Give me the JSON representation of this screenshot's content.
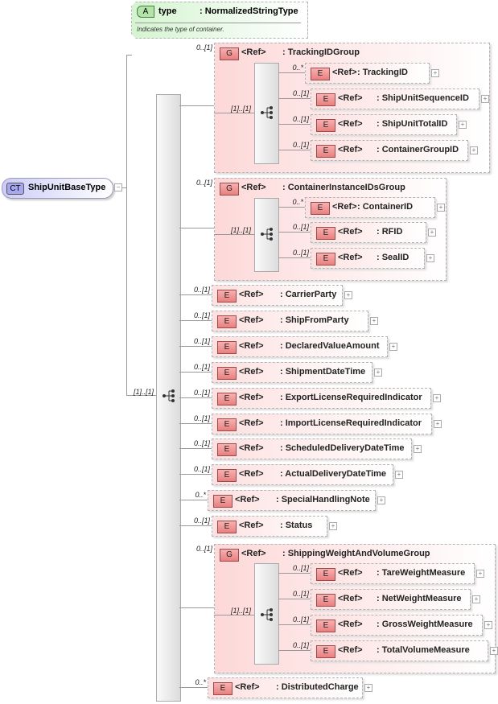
{
  "complex_type": {
    "badge": "CT",
    "name": "ShipUnitBaseType",
    "collapse": "−"
  },
  "attribute": {
    "badge": "A",
    "name": "type",
    "type": ": NormalizedStringType",
    "description": "Indicates the type of container."
  },
  "sequence_multiplicity": "[1]..[1]",
  "expand_symbol": "+",
  "children": [
    {
      "kind": "group",
      "badge": "G",
      "ref": "<Ref>",
      "name": ": TrackingIDGroup",
      "multiplicity": "0..[1]",
      "sequence_multiplicity": "[1]..[1]",
      "children": [
        {
          "badge": "E",
          "ref": "<Ref>",
          "name": ": TrackingID",
          "multiplicity": "0..*"
        },
        {
          "badge": "E",
          "ref": "<Ref>",
          "name": ": ShipUnitSequenceID",
          "multiplicity": "0..[1]"
        },
        {
          "badge": "E",
          "ref": "<Ref>",
          "name": ": ShipUnitTotalID",
          "multiplicity": "0..[1]"
        },
        {
          "badge": "E",
          "ref": "<Ref>",
          "name": ": ContainerGroupID",
          "multiplicity": "0..[1]"
        }
      ]
    },
    {
      "kind": "group",
      "badge": "G",
      "ref": "<Ref>",
      "name": ": ContainerInstanceIDsGroup",
      "multiplicity": "0..[1]",
      "sequence_multiplicity": "[1]..[1]",
      "children": [
        {
          "badge": "E",
          "ref": "<Ref>",
          "name": ": ContainerID",
          "multiplicity": "0..*"
        },
        {
          "badge": "E",
          "ref": "<Ref>",
          "name": ": RFID",
          "multiplicity": "0..[1]"
        },
        {
          "badge": "E",
          "ref": "<Ref>",
          "name": ": SealID",
          "multiplicity": "0..[1]"
        }
      ]
    },
    {
      "kind": "element",
      "badge": "E",
      "ref": "<Ref>",
      "name": ": CarrierParty",
      "multiplicity": "0..[1]"
    },
    {
      "kind": "element",
      "badge": "E",
      "ref": "<Ref>",
      "name": ": ShipFromParty",
      "multiplicity": "0..[1]"
    },
    {
      "kind": "element",
      "badge": "E",
      "ref": "<Ref>",
      "name": ": DeclaredValueAmount",
      "multiplicity": "0..[1]"
    },
    {
      "kind": "element",
      "badge": "E",
      "ref": "<Ref>",
      "name": ": ShipmentDateTime",
      "multiplicity": "0..[1]"
    },
    {
      "kind": "element",
      "badge": "E",
      "ref": "<Ref>",
      "name": ": ExportLicenseRequiredIndicator",
      "multiplicity": "0..[1]"
    },
    {
      "kind": "element",
      "badge": "E",
      "ref": "<Ref>",
      "name": ": ImportLicenseRequiredIndicator",
      "multiplicity": "0..[1]"
    },
    {
      "kind": "element",
      "badge": "E",
      "ref": "<Ref>",
      "name": ": ScheduledDeliveryDateTime",
      "multiplicity": "0..[1]"
    },
    {
      "kind": "element",
      "badge": "E",
      "ref": "<Ref>",
      "name": ": ActualDeliveryDateTime",
      "multiplicity": "0..[1]"
    },
    {
      "kind": "element",
      "badge": "E",
      "ref": "<Ref>",
      "name": ": SpecialHandlingNote",
      "multiplicity": "0..*"
    },
    {
      "kind": "element",
      "badge": "E",
      "ref": "<Ref>",
      "name": ": Status",
      "multiplicity": "0..[1]"
    },
    {
      "kind": "group",
      "badge": "G",
      "ref": "<Ref>",
      "name": ": ShippingWeightAndVolumeGroup",
      "multiplicity": "0..[1]",
      "sequence_multiplicity": "[1]..[1]",
      "children": [
        {
          "badge": "E",
          "ref": "<Ref>",
          "name": ": TareWeightMeasure",
          "multiplicity": "0..[1]"
        },
        {
          "badge": "E",
          "ref": "<Ref>",
          "name": ": NetWeightMeasure",
          "multiplicity": "0..[1]"
        },
        {
          "badge": "E",
          "ref": "<Ref>",
          "name": ": GrossWeightMeasure",
          "multiplicity": "0..[1]"
        },
        {
          "badge": "E",
          "ref": "<Ref>",
          "name": ": TotalVolumeMeasure",
          "multiplicity": "0..[1]"
        }
      ]
    },
    {
      "kind": "element",
      "badge": "E",
      "ref": "<Ref>",
      "name": ": DistributedCharge",
      "multiplicity": "0..*"
    }
  ]
}
